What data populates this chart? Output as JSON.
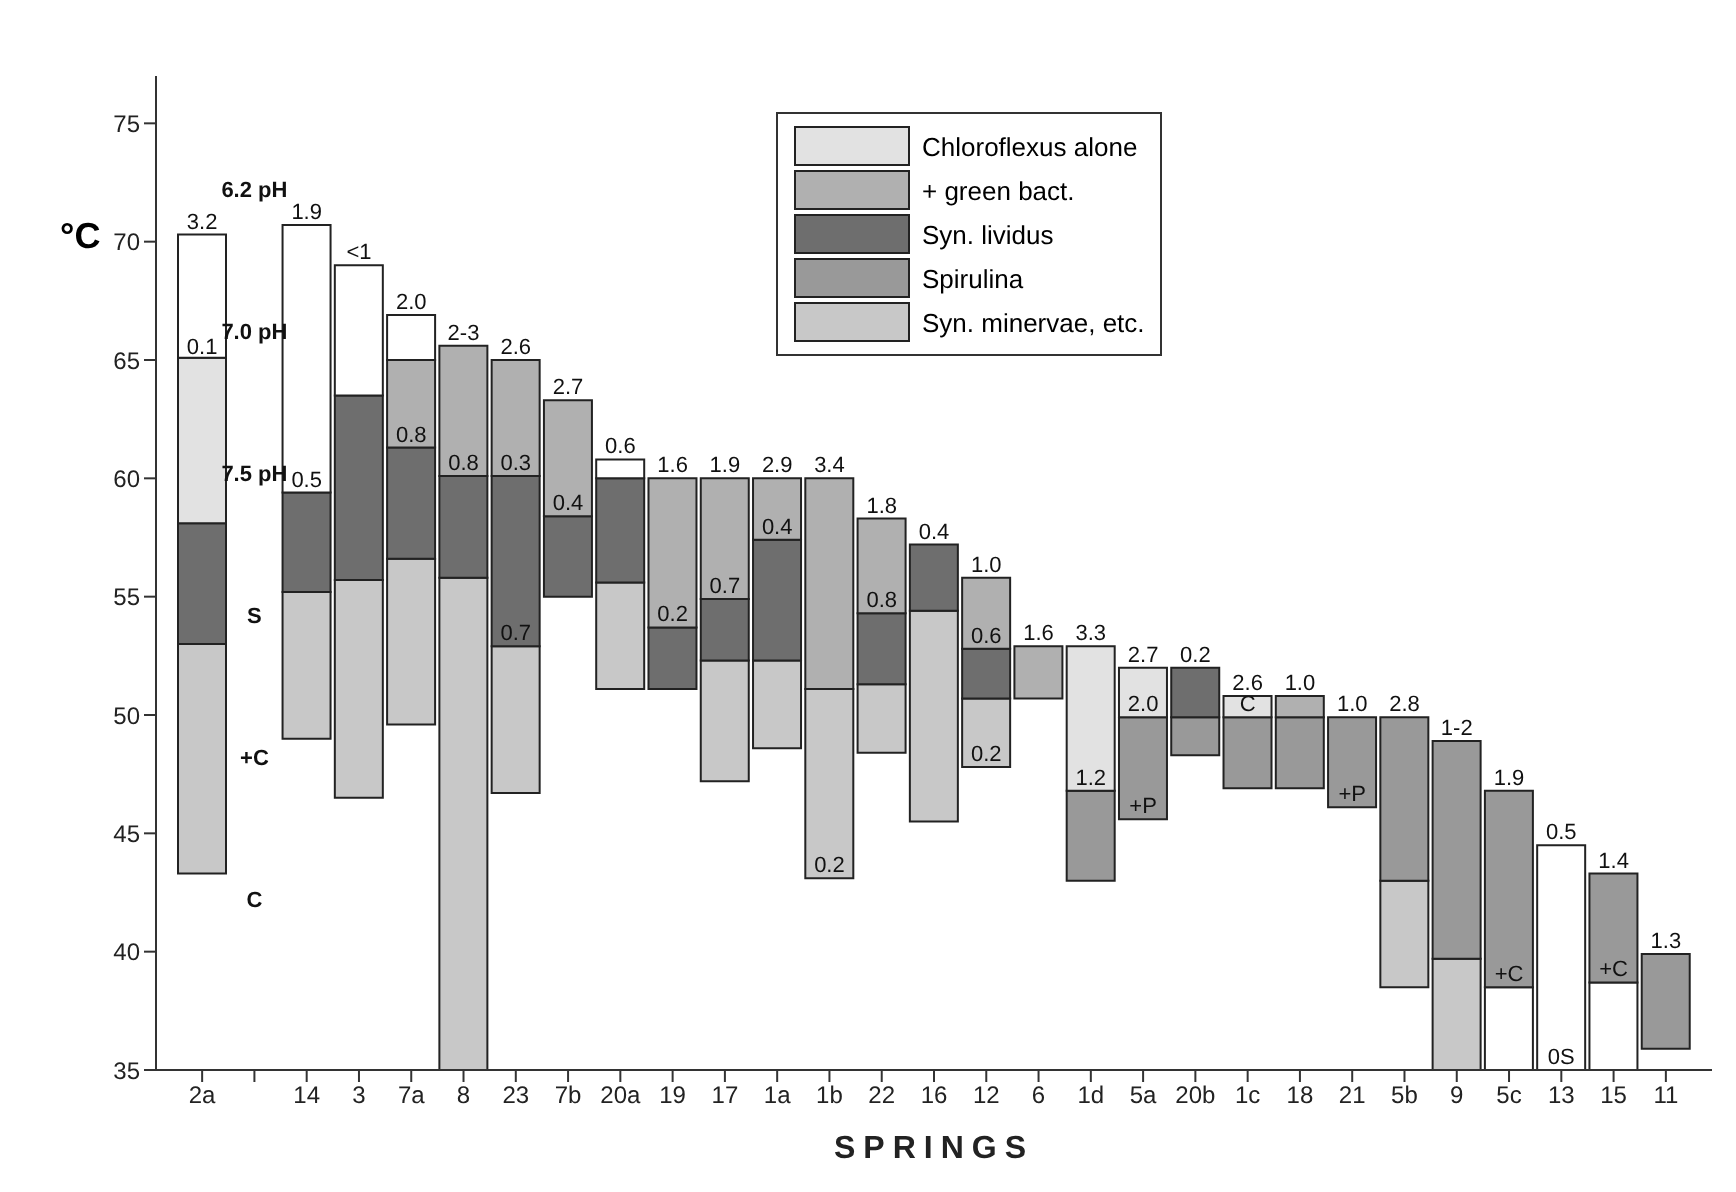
{
  "chart_data": {
    "type": "bar",
    "xlabel": "SPRINGS",
    "ylabel": "°C",
    "categories": [
      "2a",
      null,
      "14",
      "3",
      "7a",
      "8",
      "23",
      "7b",
      "20a",
      "19",
      "17",
      "1a",
      "1b",
      "22",
      "16",
      "12",
      "6",
      "1d",
      "5a",
      "20b",
      "1c",
      "18",
      "21",
      "5b",
      "9",
      "5c",
      "13",
      "15",
      "11"
    ],
    "series": [
      {
        "color": "#ffffff",
        "base": [
          null,
          null,
          null,
          null,
          null,
          null,
          null,
          null,
          null,
          null,
          null,
          null,
          null,
          null,
          null,
          null,
          null,
          null,
          null,
          null,
          null,
          null,
          null,
          null,
          null,
          35,
          35,
          35,
          null
        ],
        "values": [
          null,
          null,
          null,
          null,
          null,
          null,
          null,
          null,
          null,
          null,
          null,
          null,
          null,
          null,
          null,
          null,
          null,
          null,
          null,
          null,
          null,
          null,
          null,
          null,
          null,
          3.5,
          9.5,
          3.7,
          null
        ]
      },
      {
        "name": "Syn. minervae, etc.",
        "color": "#c8c8c8",
        "base": [
          43.3,
          null,
          49.0,
          46.5,
          49.6,
          35,
          46.7,
          null,
          51.1,
          null,
          47.2,
          48.6,
          43.1,
          48.4,
          45.5,
          47.8,
          null,
          null,
          null,
          null,
          null,
          null,
          null,
          38.5,
          35,
          null,
          null,
          null,
          null
        ],
        "values": [
          9.7,
          null,
          6.2,
          9.2,
          7.0,
          20.8,
          6.2,
          null,
          4.5,
          null,
          5.1,
          3.7,
          8.0,
          2.9,
          8.9,
          2.9,
          null,
          null,
          null,
          null,
          null,
          null,
          null,
          4.5,
          4.7,
          null,
          null,
          null,
          null
        ]
      },
      {
        "name": "Spirulina",
        "color": "#999999",
        "base": [
          null,
          null,
          null,
          null,
          null,
          null,
          null,
          null,
          null,
          null,
          null,
          null,
          null,
          null,
          null,
          null,
          null,
          43.0,
          45.6,
          48.3,
          46.9,
          46.9,
          46.1,
          43.0,
          39.7,
          38.5,
          null,
          38.7,
          35.9
        ],
        "values": [
          null,
          null,
          null,
          null,
          null,
          null,
          null,
          null,
          null,
          null,
          null,
          null,
          null,
          null,
          null,
          null,
          null,
          3.8,
          4.3,
          1.6,
          3.0,
          3.0,
          3.8,
          6.9,
          9.2,
          8.3,
          null,
          4.6,
          4.0
        ]
      },
      {
        "name": "Syn. lividus",
        "color": "#6e6e6e",
        "base": [
          53.0,
          null,
          55.2,
          55.7,
          56.6,
          55.8,
          52.9,
          55.0,
          55.6,
          51.1,
          52.3,
          52.3,
          null,
          51.3,
          54.4,
          50.7,
          null,
          null,
          null,
          49.9,
          null,
          null,
          null,
          null,
          null,
          null,
          null,
          null,
          null
        ],
        "values": [
          5.1,
          null,
          4.2,
          7.8,
          4.7,
          4.3,
          7.2,
          3.4,
          4.4,
          2.6,
          2.6,
          5.1,
          null,
          3.0,
          2.8,
          2.1,
          null,
          null,
          null,
          2.1,
          null,
          null,
          null,
          null,
          null,
          null,
          null,
          null,
          null
        ]
      },
      {
        "name": "+ green bact.",
        "color": "#b0b0b0",
        "base": [
          null,
          null,
          null,
          null,
          61.3,
          60.1,
          60.1,
          58.4,
          null,
          53.7,
          54.9,
          57.4,
          51.1,
          54.3,
          null,
          52.8,
          50.7,
          null,
          null,
          null,
          null,
          49.9,
          null,
          null,
          null,
          null,
          null,
          null,
          null
        ],
        "values": [
          null,
          null,
          null,
          null,
          3.7,
          5.5,
          4.9,
          4.9,
          null,
          6.3,
          5.1,
          2.6,
          8.9,
          4.0,
          null,
          3.0,
          2.2,
          null,
          null,
          null,
          null,
          0.9,
          null,
          null,
          null,
          null,
          null,
          null,
          null
        ]
      },
      {
        "name": "Chloroflexus alone",
        "color": "#e2e2e2",
        "base": [
          58.1,
          null,
          null,
          null,
          null,
          null,
          null,
          null,
          null,
          null,
          null,
          null,
          null,
          null,
          null,
          null,
          null,
          46.8,
          49.9,
          null,
          49.9,
          null,
          null,
          null,
          null,
          null,
          null,
          null,
          null
        ],
        "values": [
          7.0,
          null,
          null,
          null,
          null,
          null,
          null,
          null,
          null,
          null,
          null,
          null,
          null,
          null,
          null,
          null,
          null,
          6.1,
          2.1,
          null,
          0.9,
          null,
          null,
          null,
          null,
          null,
          null,
          null,
          null
        ]
      },
      {
        "color": "#ffffff",
        "base": [
          65.1,
          null,
          59.4,
          63.5,
          65.0,
          null,
          null,
          null,
          60.0,
          null,
          null,
          null,
          null,
          null,
          null,
          null,
          null,
          null,
          null,
          null,
          null,
          null,
          null,
          null,
          null,
          null,
          null,
          null,
          null
        ],
        "values": [
          5.2,
          null,
          11.3,
          5.5,
          1.9,
          null,
          null,
          null,
          0.8,
          null,
          null,
          null,
          null,
          null,
          null,
          null,
          null,
          null,
          null,
          null,
          null,
          null,
          null,
          null,
          null,
          null,
          null,
          null,
          null
        ]
      }
    ],
    "ylim": [
      35,
      77
    ],
    "yticks": [
      35,
      40,
      45,
      50,
      55,
      60,
      65,
      70,
      75
    ],
    "legend": "top right",
    "annotations": [
      {
        "text": "3.2",
        "x": "2a",
        "y": 70.3
      },
      {
        "text": "0.1",
        "x": "2a",
        "y": 65.0
      },
      "6.2 pH",
      "7.0 pH",
      "7.5 pH",
      "S",
      "+C",
      "C",
      {
        "text": "1.9",
        "x": "14",
        "y": 70.7
      },
      {
        "text": "0.5",
        "x": "14",
        "y": 59.4
      },
      {
        "text": "<1",
        "x": "3",
        "y": 69.0
      },
      {
        "text": "2.0",
        "x": "7a",
        "y": 66.9
      },
      {
        "text": "0.8",
        "x": "7a",
        "y": 61.3
      },
      {
        "text": "2-3",
        "x": "8",
        "y": 65.6
      },
      {
        "text": "0.8",
        "x": "8",
        "y": 60.1
      },
      {
        "text": "2.6",
        "x": "23",
        "y": 65.0
      },
      {
        "text": "0.3",
        "x": "23",
        "y": 60.1
      },
      {
        "text": "0.7",
        "x": "23",
        "y": 52.9
      },
      {
        "text": "2.7",
        "x": "7b",
        "y": 63.3
      },
      {
        "text": "0.4",
        "x": "7b",
        "y": 58.4
      },
      {
        "text": "0.6",
        "x": "20a",
        "y": 60.8
      },
      {
        "text": "1.6",
        "x": "19",
        "y": 60.0
      },
      {
        "text": "0.2",
        "x": "19",
        "y": 53.7
      },
      {
        "text": "1.9",
        "x": "17",
        "y": 60.0
      },
      {
        "text": "0.7",
        "x": "17",
        "y": 54.9
      },
      {
        "text": "2.9",
        "x": "1a",
        "y": 60.0
      },
      {
        "text": "0.4",
        "x": "1a",
        "y": 57.4
      },
      {
        "text": "3.4",
        "x": "1b",
        "y": 60.0
      },
      {
        "text": "0.2",
        "x": "1b",
        "y": 43.1
      },
      {
        "text": "1.8",
        "x": "22",
        "y": 58.3
      },
      {
        "text": "0.8",
        "x": "22",
        "y": 54.3
      },
      {
        "text": "0.4",
        "x": "16",
        "y": 57.2
      },
      {
        "text": "1.0",
        "x": "12",
        "y": 55.8
      },
      {
        "text": "0.6",
        "x": "12",
        "y": 52.8
      },
      {
        "text": "0.2",
        "x": "12",
        "y": 47.8
      },
      {
        "text": "1.6",
        "x": "6",
        "y": 52.9
      },
      {
        "text": "3.3",
        "x": "1d",
        "y": 52.9
      },
      {
        "text": "1.2",
        "x": "1d",
        "y": 46.8
      },
      {
        "text": "2.7",
        "x": "5a",
        "y": 52.0
      },
      {
        "text": "2.0",
        "x": "5a",
        "y": 49.9
      },
      {
        "text": "+P",
        "x": "5a",
        "y": 45.6
      },
      {
        "text": "0.2",
        "x": "20b",
        "y": 52.0
      },
      {
        "text": "2.6",
        "x": "1c",
        "y": 50.8
      },
      {
        "text": "C",
        "x": "1c",
        "y": 49.9
      },
      {
        "text": "1.0",
        "x": "18",
        "y": 50.8
      },
      {
        "text": "1.0",
        "x": "21",
        "y": 49.9
      },
      {
        "text": "+P",
        "x": "21",
        "y": 46.1
      },
      {
        "text": "2.8",
        "x": "5b",
        "y": 49.9
      },
      {
        "text": "1-2",
        "x": "9",
        "y": 48.9
      },
      {
        "text": "1.9",
        "x": "5c",
        "y": 46.8
      },
      {
        "text": "+C",
        "x": "5c",
        "y": 38.5
      },
      {
        "text": "0.5",
        "x": "13",
        "y": 44.5
      },
      {
        "text": "0S",
        "x": "13",
        "y": 35
      },
      {
        "text": "1.4",
        "x": "15",
        "y": 43.3
      },
      {
        "text": "+C",
        "x": "15",
        "y": 38.7
      },
      {
        "text": "1.3",
        "x": "11",
        "y": 39.9
      }
    ]
  }
}
